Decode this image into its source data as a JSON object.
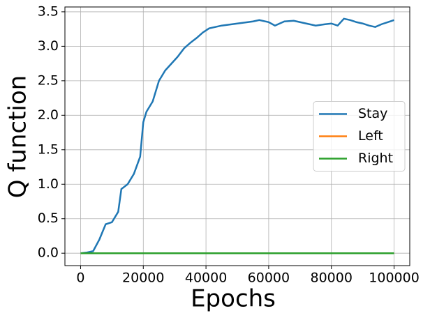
{
  "chart_data": {
    "type": "line",
    "xlabel": "Epochs",
    "ylabel": "Q function",
    "x": [
      0,
      2000,
      4000,
      6000,
      8000,
      10000,
      12000,
      13000,
      15000,
      17000,
      19000,
      20000,
      21000,
      23000,
      25000,
      27000,
      29000,
      31000,
      33000,
      35000,
      37000,
      39000,
      41000,
      45000,
      50000,
      55000,
      57000,
      60000,
      62000,
      65000,
      68000,
      70000,
      72000,
      75000,
      78000,
      80000,
      82000,
      84000,
      86000,
      88000,
      90000,
      92000,
      94000,
      96000,
      98000,
      100000
    ],
    "series": [
      {
        "name": "Stay",
        "color": "#1f77b4",
        "values": [
          0,
          0.01,
          0.03,
          0.2,
          0.42,
          0.45,
          0.6,
          0.93,
          1.0,
          1.15,
          1.4,
          1.9,
          2.05,
          2.2,
          2.5,
          2.65,
          2.75,
          2.85,
          2.97,
          3.05,
          3.12,
          3.2,
          3.26,
          3.3,
          3.33,
          3.36,
          3.38,
          3.35,
          3.3,
          3.36,
          3.37,
          3.35,
          3.33,
          3.3,
          3.32,
          3.33,
          3.3,
          3.4,
          3.38,
          3.35,
          3.33,
          3.3,
          3.28,
          3.32,
          3.35,
          3.38
        ]
      },
      {
        "name": "Left",
        "color": "#ff7f0e",
        "values": [
          0,
          0,
          0,
          0,
          0,
          0,
          0,
          0,
          0,
          0,
          0,
          0,
          0,
          0,
          0,
          0,
          0,
          0,
          0,
          0,
          0,
          0,
          0,
          0,
          0,
          0,
          0,
          0,
          0,
          0,
          0,
          0,
          0,
          0,
          0,
          0,
          0,
          0,
          0,
          0,
          0,
          0,
          0,
          0,
          0,
          0
        ]
      },
      {
        "name": "Right",
        "color": "#2ca02c",
        "values": [
          0,
          0,
          0,
          0,
          0,
          0,
          0,
          0,
          0,
          0,
          0,
          0,
          0,
          0,
          0,
          0,
          0,
          0,
          0,
          0,
          0,
          0,
          0,
          0,
          0,
          0,
          0,
          0,
          0,
          0,
          0,
          0,
          0,
          0,
          0,
          0,
          0,
          0,
          0,
          0,
          0,
          0,
          0,
          0,
          0,
          0
        ]
      }
    ],
    "xlim": [
      -5000,
      105000
    ],
    "ylim": [
      -0.18,
      3.57
    ],
    "xticks": [
      0,
      20000,
      40000,
      60000,
      80000,
      100000
    ],
    "yticks": [
      {
        "value": 0,
        "label": "0.0"
      },
      0.5,
      {
        "value": 1,
        "label": "1.0"
      },
      1.5,
      {
        "value": 2,
        "label": "2.0"
      },
      2.5,
      {
        "value": 3,
        "label": "3.0"
      },
      3.5
    ],
    "grid": true,
    "legend": "center right"
  }
}
